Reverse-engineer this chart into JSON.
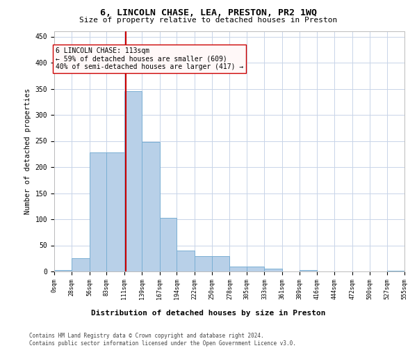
{
  "title1": "6, LINCOLN CHASE, LEA, PRESTON, PR2 1WQ",
  "title2": "Size of property relative to detached houses in Preston",
  "xlabel": "Distribution of detached houses by size in Preston",
  "ylabel": "Number of detached properties",
  "bar_color": "#b8d0e8",
  "bar_edge_color": "#7aafd4",
  "vline_x": 113,
  "vline_color": "#cc0000",
  "annotation_line1": "6 LINCOLN CHASE: 113sqm",
  "annotation_line2": "← 59% of detached houses are smaller (609)",
  "annotation_line3": "40% of semi-detached houses are larger (417) →",
  "bins": [
    0,
    28,
    56,
    83,
    111,
    139,
    167,
    194,
    222,
    250,
    278,
    305,
    333,
    361,
    389,
    416,
    444,
    472,
    500,
    527,
    555
  ],
  "counts": [
    3,
    25,
    228,
    228,
    346,
    248,
    103,
    40,
    30,
    30,
    10,
    10,
    5,
    0,
    3,
    0,
    0,
    0,
    0,
    2
  ],
  "ylim": [
    0,
    460
  ],
  "yticks": [
    0,
    50,
    100,
    150,
    200,
    250,
    300,
    350,
    400,
    450
  ],
  "footer_text": "Contains HM Land Registry data © Crown copyright and database right 2024.\nContains public sector information licensed under the Open Government Licence v3.0.",
  "bg_color": "#ffffff",
  "grid_color": "#c8d4e8",
  "annotation_box_facecolor": "#fff8f8",
  "annotation_box_edge": "#cc0000"
}
